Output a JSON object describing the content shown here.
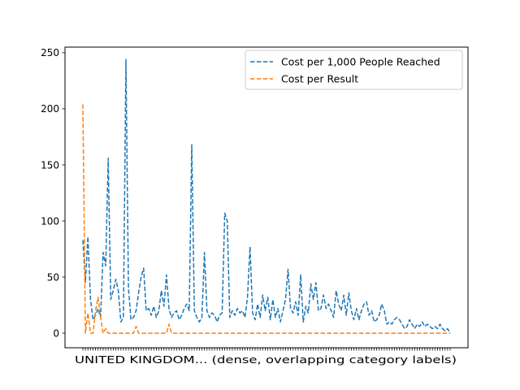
{
  "chart_data": {
    "type": "line",
    "title": "",
    "xlabel": "",
    "ylabel": "",
    "ylim": [
      -13,
      255
    ],
    "y_ticks": [
      0,
      50,
      100,
      150,
      200,
      250
    ],
    "x_tick_labels_overlapping": "UNITED KINGDOM... (dense, overlapping category labels)",
    "legend": {
      "location": "upper right"
    },
    "grid": false,
    "series": [
      {
        "name": "Cost per 1,000 People Reached",
        "color": "#1f77b4",
        "dash": "dashed",
        "values": [
          83,
          45,
          86,
          30,
          12,
          16,
          22,
          14,
          72,
          60,
          156,
          30,
          38,
          48,
          38,
          10,
          14,
          244,
          40,
          12,
          14,
          20,
          36,
          50,
          58,
          20,
          22,
          16,
          24,
          14,
          20,
          38,
          24,
          52,
          22,
          14,
          18,
          20,
          12,
          16,
          22,
          26,
          20,
          168,
          20,
          14,
          10,
          14,
          72,
          20,
          14,
          18,
          16,
          10,
          16,
          18,
          107,
          100,
          14,
          20,
          16,
          22,
          18,
          20,
          14,
          32,
          77,
          18,
          12,
          26,
          14,
          34,
          20,
          32,
          12,
          30,
          14,
          22,
          10,
          20,
          30,
          57,
          22,
          18,
          28,
          16,
          52,
          10,
          24,
          18,
          44,
          30,
          45,
          20,
          22,
          34,
          22,
          26,
          20,
          14,
          38,
          26,
          20,
          34,
          16,
          36,
          20,
          12,
          22,
          12,
          20,
          26,
          28,
          16,
          20,
          10,
          12,
          16,
          26,
          20,
          8,
          10,
          8,
          12,
          14,
          12,
          8,
          4,
          6,
          12,
          8,
          4,
          8,
          6,
          10,
          6,
          8,
          6,
          4,
          6,
          4,
          8,
          4,
          2,
          4,
          0
        ],
        "estimated_from_gridlines": true
      },
      {
        "name": "Cost per Result",
        "color": "#ff7f0e",
        "dash": "dashed",
        "values": [
          204,
          0,
          18,
          0,
          0,
          20,
          32,
          14,
          0,
          4,
          0,
          0,
          0,
          0,
          0,
          0,
          0,
          0,
          0,
          0,
          0,
          6,
          0,
          0,
          0,
          0,
          0,
          0,
          0,
          0,
          0,
          0,
          0,
          0,
          8,
          0,
          0,
          0,
          0,
          0,
          0,
          0,
          0,
          0,
          0,
          0,
          0,
          0,
          0,
          0,
          0,
          0,
          0,
          0,
          0,
          0,
          0,
          0,
          0,
          0,
          0,
          0,
          0,
          0,
          0,
          0,
          0,
          0,
          0,
          0,
          0,
          0,
          0,
          0,
          0,
          0,
          0,
          0,
          0,
          0,
          0,
          0,
          0,
          0,
          0,
          0,
          0,
          0,
          0,
          0,
          0,
          0,
          0,
          0,
          0,
          0,
          0,
          0,
          0,
          0,
          0,
          0,
          0,
          0,
          0,
          0,
          0,
          0,
          0,
          0,
          0,
          0,
          0,
          0,
          0,
          0,
          0,
          0,
          0,
          0,
          0,
          0,
          0,
          0,
          0,
          0,
          0,
          0,
          0,
          0,
          0,
          0,
          0,
          0,
          0,
          0,
          0,
          0,
          0,
          0,
          0,
          0,
          0,
          0,
          0,
          0
        ],
        "estimated_from_gridlines": true
      }
    ]
  }
}
